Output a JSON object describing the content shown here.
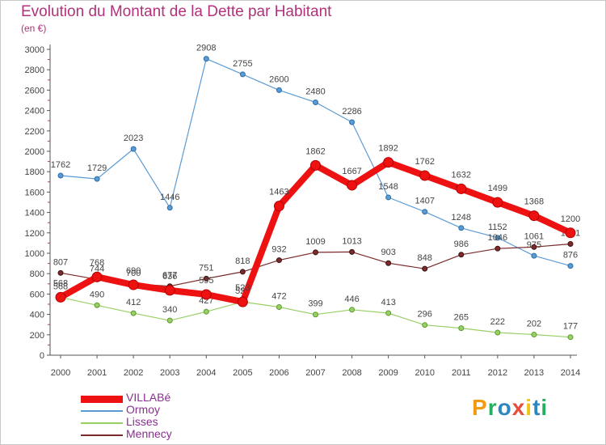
{
  "header": {
    "title": "Evolution du Montant de la Dette par Habitant",
    "subtitle": "(en €)"
  },
  "brand": {
    "letters": [
      "P",
      "r",
      "o",
      "x",
      "i",
      "t",
      "i"
    ],
    "colors": [
      "#f39c12",
      "#27ae60",
      "#2e86c1",
      "#e74c3c",
      "#f1c40f",
      "#2e86c1",
      "#27ae60"
    ]
  },
  "colors": {
    "axis": "#555555",
    "grid_tick": "#dddddd",
    "label_text": "#444444",
    "minor_tick": "#cc3333"
  },
  "chart_data": {
    "type": "line",
    "title": "Evolution du Montant de la Dette par Habitant",
    "subtitle": "(en €)",
    "x": [
      "2000",
      "2001",
      "2002",
      "2003",
      "2004",
      "2005",
      "2006",
      "2007",
      "2008",
      "2009",
      "2010",
      "2011",
      "2012",
      "2013",
      "2014"
    ],
    "ylim": [
      0,
      3000
    ],
    "yticks": [
      0,
      200,
      400,
      600,
      800,
      1000,
      1200,
      1400,
      1600,
      1800,
      2000,
      2200,
      2400,
      2600,
      2800,
      3000
    ],
    "grid": false,
    "legend_position": "bottom-left",
    "series": [
      {
        "name": "Ormoy",
        "color": "#5b9bd5",
        "values": [
          1762,
          1729,
          2023,
          1446,
          2908,
          2755,
          2600,
          2480,
          2286,
          1548,
          1407,
          1248,
          1152,
          975,
          876
        ]
      },
      {
        "name": "Lisses",
        "color": "#99d066",
        "values": [
          568,
          490,
          412,
          340,
          427,
          523,
          472,
          399,
          446,
          413,
          296,
          265,
          222,
          202,
          177
        ]
      },
      {
        "name": "Mennecy",
        "color": "#7b2b2b",
        "values": [
          807,
          744,
          700,
          677,
          751,
          818,
          932,
          1009,
          1013,
          903,
          848,
          986,
          1046,
          1061,
          1091
        ]
      },
      {
        "name": "VILLABé",
        "color": "#ee1111",
        "values": [
          568,
          768,
          690,
          636,
          595,
          523,
          1463,
          1862,
          1667,
          1892,
          1762,
          1632,
          1499,
          1368,
          1200
        ]
      }
    ]
  }
}
